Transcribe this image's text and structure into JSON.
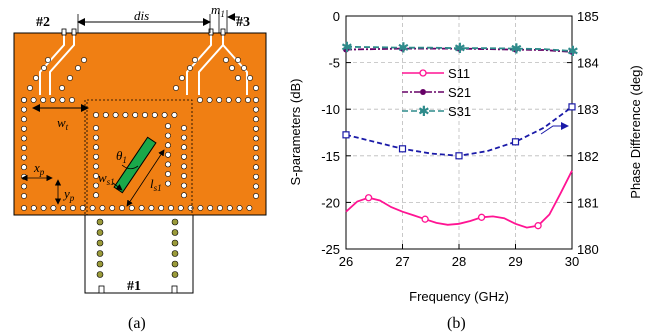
{
  "captions": {
    "left": "(a)",
    "right": "(b)"
  },
  "layout_labels": {
    "port2": "#2",
    "port3": "#3",
    "port1": "#1",
    "dis": "dis",
    "m1": "m",
    "m1_sub": "1",
    "wt": "w",
    "wt_sub": "t",
    "theta1": "θ",
    "theta1_sub": "1",
    "ws1": "w",
    "ws1_sub": "s1",
    "ls1": "l",
    "ls1_sub": "s1",
    "xp": "x",
    "xp_sub": "p",
    "yp": "y",
    "yp_sub": "p"
  },
  "colors": {
    "substrate": "#f07f13",
    "slot": "#1aa84a",
    "via_fill": "#ffffff",
    "s11": "#ff1493",
    "s21": "#660066",
    "s31": "#2e8b8b",
    "phase": "#1a1aa8"
  },
  "chart_data": {
    "type": "line",
    "xlabel": "Frequency (GHz)",
    "ylabel": "S-parameters (dB)",
    "ylabel_right": "Phase Difference (deg)",
    "xlim": [
      26,
      30
    ],
    "ylim": [
      -25,
      0
    ],
    "ylim_right": [
      180,
      185
    ],
    "x_ticks": [
      "26",
      "27",
      "28",
      "29",
      "30"
    ],
    "y_ticks": [
      "0",
      "-5",
      "-10",
      "-15",
      "-20",
      "-25"
    ],
    "y_ticks_right": [
      "185",
      "184",
      "183",
      "182",
      "181",
      "180"
    ],
    "grid": true,
    "legend_position": "upper-center",
    "series": [
      {
        "name": "S11",
        "axis": "left",
        "style": "solid-circle",
        "x": [
          26.0,
          26.2,
          26.4,
          26.6,
          26.8,
          27.0,
          27.2,
          27.4,
          27.6,
          27.8,
          28.0,
          28.2,
          28.4,
          28.6,
          28.8,
          29.0,
          29.2,
          29.4,
          29.6,
          29.8,
          30.0
        ],
        "values": [
          -21.0,
          -19.9,
          -19.5,
          -19.8,
          -20.5,
          -21.0,
          -21.4,
          -21.8,
          -22.2,
          -22.4,
          -22.3,
          -22.0,
          -21.6,
          -21.5,
          -21.7,
          -22.3,
          -22.7,
          -22.5,
          -21.3,
          -19.0,
          -16.6
        ]
      },
      {
        "name": "S21",
        "axis": "left",
        "style": "dash-dot-circle",
        "x": [
          26.0,
          26.5,
          27.0,
          27.5,
          28.0,
          28.5,
          29.0,
          29.5,
          30.0
        ],
        "values": [
          -3.6,
          -3.55,
          -3.5,
          -3.5,
          -3.5,
          -3.55,
          -3.6,
          -3.65,
          -3.85
        ]
      },
      {
        "name": "S31",
        "axis": "left",
        "style": "dash-star",
        "x": [
          26.0,
          26.5,
          27.0,
          27.5,
          28.0,
          28.5,
          29.0,
          29.5,
          30.0
        ],
        "values": [
          -3.3,
          -3.35,
          -3.4,
          -3.4,
          -3.45,
          -3.45,
          -3.5,
          -3.55,
          -3.75
        ]
      },
      {
        "name": "",
        "axis": "right",
        "style": "dash-square",
        "x": [
          26.0,
          26.5,
          27.0,
          27.5,
          28.0,
          28.5,
          29.0,
          29.5,
          30.0
        ],
        "values": [
          182.45,
          182.3,
          182.15,
          182.05,
          182.0,
          182.1,
          182.3,
          182.6,
          183.05
        ]
      }
    ]
  }
}
